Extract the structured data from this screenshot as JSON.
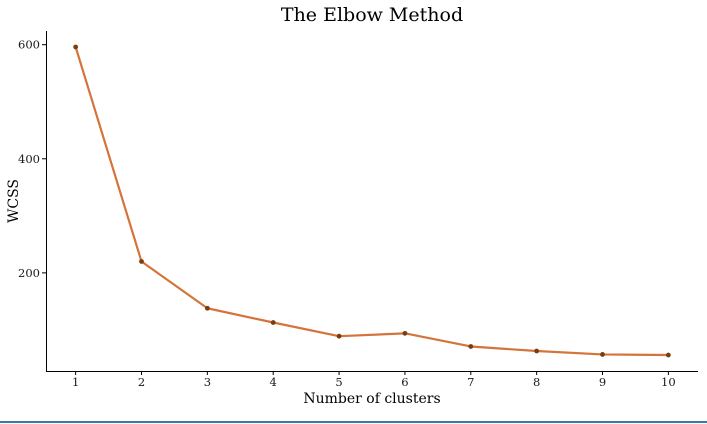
{
  "chart_data": {
    "type": "line",
    "title": "The Elbow Method",
    "xlabel": "Number of clusters",
    "ylabel": "WCSS",
    "x": [
      1,
      2,
      3,
      4,
      5,
      6,
      7,
      8,
      9,
      10
    ],
    "xticks": [
      "1",
      "2",
      "3",
      "4",
      "5",
      "6",
      "7",
      "8",
      "9",
      "10"
    ],
    "yticks": [
      "200",
      "400",
      "600"
    ],
    "ytick_values": [
      200,
      400,
      600
    ],
    "ylim": [
      28,
      624
    ],
    "xlim": [
      0.55,
      10.45
    ],
    "grid": false,
    "series": [
      {
        "values": [
          596,
          220,
          138,
          113,
          89,
          94,
          71,
          63,
          57,
          56
        ]
      }
    ],
    "colors": {
      "line": "#d4743a",
      "marker": "#7a3d10",
      "axis": "#000000"
    }
  }
}
